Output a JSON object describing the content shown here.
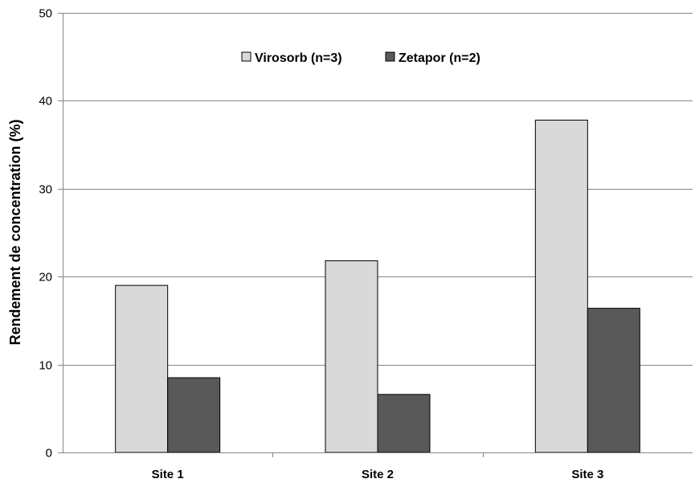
{
  "chart_data": {
    "type": "bar",
    "title": "",
    "xlabel": "",
    "ylabel": "Rendement de concentration (%)",
    "ylim": [
      0,
      50
    ],
    "yticks": [
      "0",
      "10",
      "20",
      "30",
      "40",
      "50"
    ],
    "categories": [
      "Site 1",
      "Site 2",
      "Site 3"
    ],
    "series": [
      {
        "name": "Virosorb (n=3)",
        "values": [
          19.0,
          21.8,
          37.8
        ],
        "color": "#d9d9d9"
      },
      {
        "name": "Zetapor (n=2)",
        "values": [
          8.5,
          6.6,
          16.4
        ],
        "color": "#595959"
      }
    ],
    "grid": true,
    "legend_position": "top-center"
  }
}
